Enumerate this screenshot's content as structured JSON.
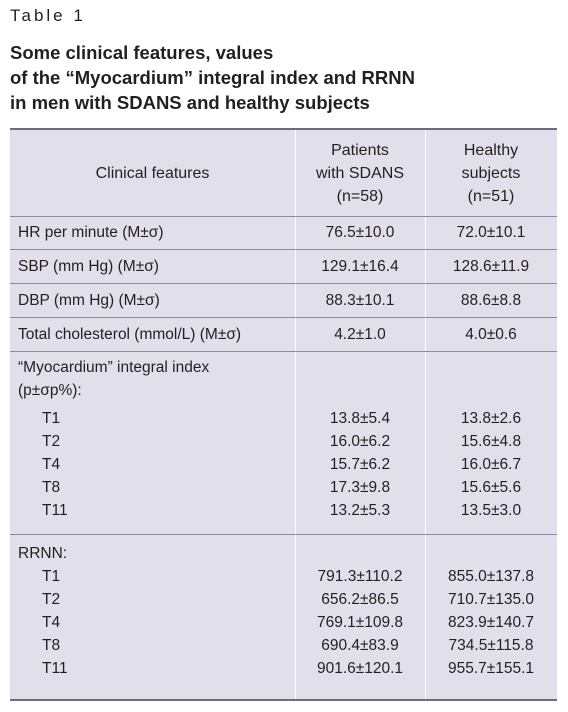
{
  "caption": {
    "label": "Table 1",
    "title_lines": [
      "Some clinical features, values",
      "of the “Myocardium” integral index and RRNN",
      "in men with SDANS and healthy subjects"
    ]
  },
  "table": {
    "header": {
      "col1": "Clinical features",
      "col2": [
        "Patients",
        "with SDANS",
        "(n=58)"
      ],
      "col3": [
        "Healthy",
        "subjects",
        "(n=51)"
      ]
    },
    "rows": [
      {
        "label": "HR per minute (M±σ)",
        "patients": "76.5±10.0",
        "healthy": "72.0±10.1"
      },
      {
        "label": "SBP (mm Hg) (M±σ)",
        "patients": "129.1±16.4",
        "healthy": "128.6±11.9"
      },
      {
        "label": "DBP (mm Hg) (M±σ)",
        "patients": "88.3±10.1",
        "healthy": "88.6±8.8"
      },
      {
        "label": "Total cholesterol (mmol/L) (M±σ)",
        "patients": "4.2±1.0",
        "healthy": "4.0±0.6"
      }
    ],
    "myocardium": {
      "title_lines": [
        "“Myocardium” integral index",
        "(p±σp%):"
      ],
      "items": [
        {
          "label": "T1",
          "patients": "13.8±5.4",
          "healthy": "13.8±2.6"
        },
        {
          "label": "T2",
          "patients": "16.0±6.2",
          "healthy": "15.6±4.8"
        },
        {
          "label": "T4",
          "patients": "15.7±6.2",
          "healthy": "16.0±6.7"
        },
        {
          "label": "T8",
          "patients": "17.3±9.8",
          "healthy": "15.6±5.6"
        },
        {
          "label": "T11",
          "patients": "13.2±5.3",
          "healthy": "13.5±3.0"
        }
      ]
    },
    "rrnn": {
      "title": "RRNN:",
      "items": [
        {
          "label": "T1",
          "patients": "791.3±110.2",
          "healthy": "855.0±137.8"
        },
        {
          "label": "T2",
          "patients": "656.2±86.5",
          "healthy": "710.7±135.0"
        },
        {
          "label": "T4",
          "patients": "769.1±109.8",
          "healthy": "823.9±140.7"
        },
        {
          "label": "T8",
          "patients": "690.4±83.9",
          "healthy": "734.5±115.8"
        },
        {
          "label": "T11",
          "patients": "901.6±120.1",
          "healthy": "955.7±155.1"
        }
      ]
    }
  }
}
